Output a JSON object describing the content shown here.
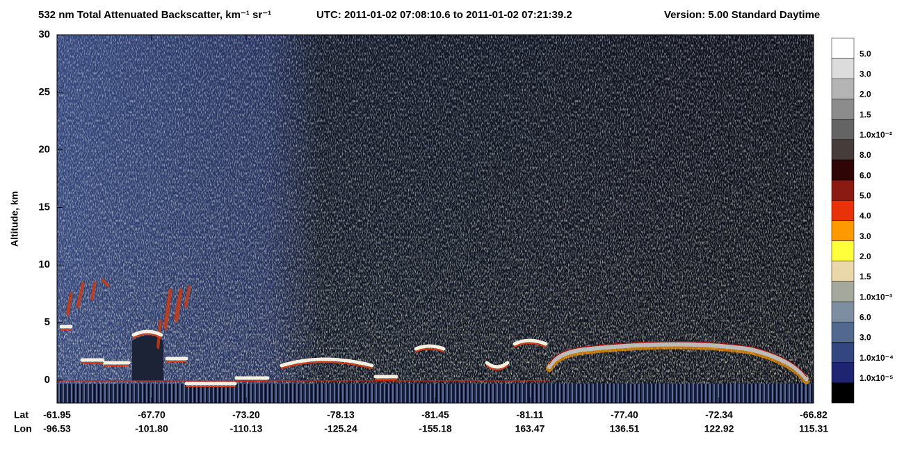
{
  "chart_data": {
    "type": "heatmap",
    "title": "532 nm Total Attenuated Backscatter, km⁻¹ sr⁻¹",
    "time_range": "UTC:  2011-01-02 07:08:10.6  to  2011-01-02 07:21:39.2",
    "version": "Version: 5.00  Standard  Daytime",
    "y_label": "Altitude, km",
    "ylim": [
      -2,
      30
    ],
    "yticks": [
      0,
      5,
      10,
      15,
      20,
      25,
      30
    ],
    "lat_label": "Lat",
    "lon_label": "Lon",
    "lat": [
      "-61.95",
      "-67.70",
      "-73.20",
      "-78.13",
      "-81.45",
      "-81.11",
      "-77.40",
      "-72.34",
      "-66.82"
    ],
    "lon": [
      "-96.53",
      "-101.80",
      "-110.13",
      "-125.24",
      "-155.18",
      "163.47",
      "136.51",
      "122.92",
      "115.31"
    ],
    "colorbar": {
      "colors": [
        "#ffffff",
        "#dcdcdc",
        "#b4b4b4",
        "#8c8c8c",
        "#646464",
        "#463c3a",
        "#300505",
        "#8a1a12",
        "#e8320a",
        "#ff9900",
        "#ffff3c",
        "#ead8aa",
        "#a5a89c",
        "#7d8ea0",
        "#52688e",
        "#334680",
        "#1e2472",
        "#000000"
      ],
      "labels": [
        "5.0",
        "3.0",
        "2.0",
        "1.5",
        "1.0x10⁻²",
        "8.0",
        "6.0",
        "5.0",
        "4.0",
        "3.0",
        "2.0",
        "1.5",
        "1.0x10⁻³",
        "6.0",
        "3.0",
        "1.0x10⁻⁴",
        "1.0x10⁻⁵"
      ]
    }
  }
}
